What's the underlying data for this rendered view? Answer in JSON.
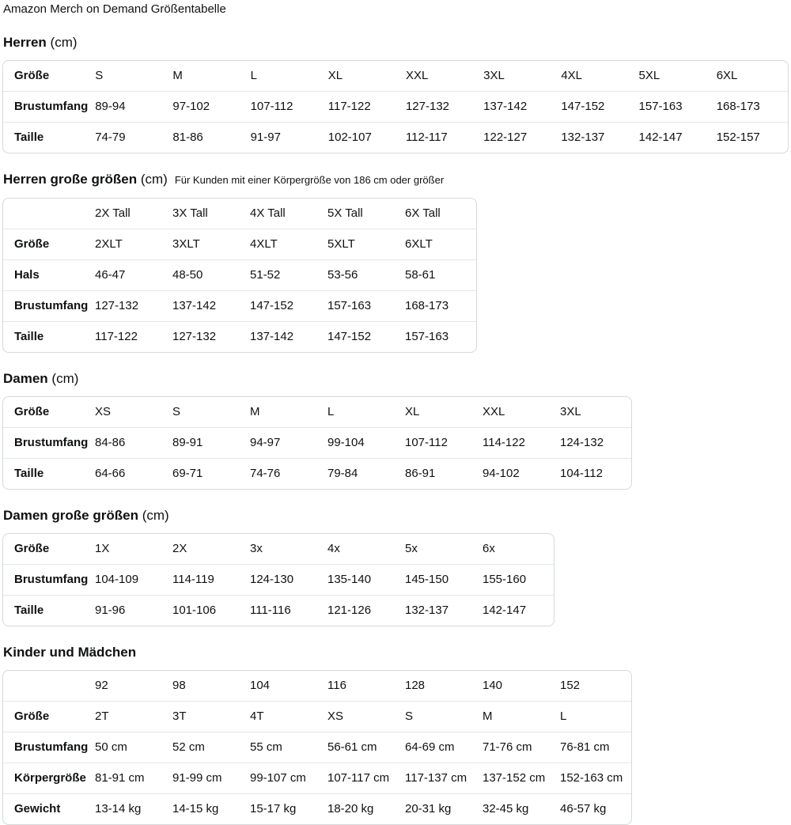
{
  "page_title": "Amazon Merch on Demand Größentabelle",
  "sections": {
    "herren": {
      "heading": "Herren",
      "unit": "(cm)",
      "corner": "Größe",
      "columns": [
        "S",
        "M",
        "L",
        "XL",
        "XXL",
        "3XL",
        "4XL",
        "5XL",
        "6XL"
      ],
      "rows": [
        {
          "label": "Brustumfang",
          "values": [
            "89-94",
            "97-102",
            "107-112",
            "117-122",
            "127-132",
            "137-142",
            "147-152",
            "157-163",
            "168-173"
          ]
        },
        {
          "label": "Taille",
          "values": [
            "74-79",
            "81-86",
            "91-97",
            "102-107",
            "112-117",
            "122-127",
            "132-137",
            "142-147",
            "152-157"
          ]
        }
      ]
    },
    "herren_tall": {
      "heading": "Herren große größen",
      "unit": "(cm)",
      "note": "Für Kunden mit einer Körpergröße von 186 cm oder größer",
      "corner": "",
      "columns": [
        "2X Tall",
        "3X Tall",
        "4X Tall",
        "5X Tall",
        "6X Tall"
      ],
      "rows": [
        {
          "label": "Größe",
          "values": [
            "2XLT",
            "3XLT",
            "4XLT",
            "5XLT",
            "6XLT"
          ]
        },
        {
          "label": "Hals",
          "values": [
            "46-47",
            "48-50",
            "51-52",
            "53-56",
            "58-61"
          ]
        },
        {
          "label": "Brustumfang",
          "values": [
            "127-132",
            "137-142",
            "147-152",
            "157-163",
            "168-173"
          ]
        },
        {
          "label": "Taille",
          "values": [
            "117-122",
            "127-132",
            "137-142",
            "147-152",
            "157-163"
          ]
        }
      ]
    },
    "damen": {
      "heading": "Damen",
      "unit": "(cm)",
      "corner": "Größe",
      "columns": [
        "XS",
        "S",
        "M",
        "L",
        "XL",
        "XXL",
        "3XL"
      ],
      "rows": [
        {
          "label": "Brustumfang",
          "values": [
            "84-86",
            "89-91",
            "94-97",
            "99-104",
            "107-112",
            "114-122",
            "124-132"
          ]
        },
        {
          "label": "Taille",
          "values": [
            "64-66",
            "69-71",
            "74-76",
            "79-84",
            "86-91",
            "94-102",
            "104-112"
          ]
        }
      ]
    },
    "damen_plus": {
      "heading": "Damen große größen",
      "unit": "(cm)",
      "corner": "Größe",
      "columns": [
        "1X",
        "2X",
        "3x",
        "4x",
        "5x",
        "6x"
      ],
      "rows": [
        {
          "label": "Brustumfang",
          "values": [
            "104-109",
            "114-119",
            "124-130",
            "135-140",
            "145-150",
            "155-160"
          ]
        },
        {
          "label": "Taille",
          "values": [
            "91-96",
            "101-106",
            "111-116",
            "121-126",
            "132-137",
            "142-147"
          ]
        }
      ]
    },
    "kinder": {
      "heading": "Kinder und Mädchen",
      "unit": "",
      "corner": "",
      "columns": [
        "92",
        "98",
        "104",
        "116",
        "128",
        "140",
        "152"
      ],
      "rows": [
        {
          "label": "Größe",
          "values": [
            "2T",
            "3T",
            "4T",
            "XS",
            "S",
            "M",
            "L"
          ]
        },
        {
          "label": "Brustumfang",
          "values": [
            "50 cm",
            "52 cm",
            "55 cm",
            "56-61 cm",
            "64-69 cm",
            "71-76 cm",
            "76-81 cm"
          ]
        },
        {
          "label": "Körpergröße",
          "values": [
            "81-91 cm",
            "91-99 cm",
            "99-107 cm",
            "107-117 cm",
            "117-137 cm",
            "137-152 cm",
            "152-163 cm"
          ]
        },
        {
          "label": "Gewicht",
          "values": [
            "13-14 kg",
            "14-15 kg",
            "15-17 kg",
            "18-20 kg",
            "20-31 kg",
            "32-45 kg",
            "46-57 kg"
          ]
        }
      ]
    }
  }
}
